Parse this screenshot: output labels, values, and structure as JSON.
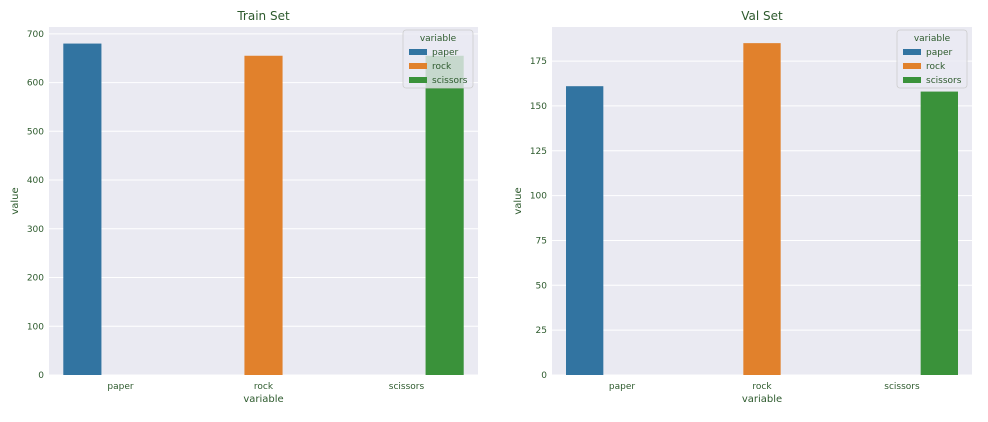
{
  "colors": {
    "paper": "#3274a1",
    "rock": "#e1812c",
    "scissors": "#3a923a",
    "plot_bg": "#eaeaf2",
    "grid": "#ffffff",
    "text": "#2d5a2d"
  },
  "chart_data": [
    {
      "type": "bar",
      "title": "Train Set",
      "xlabel": "variable",
      "ylabel": "value",
      "categories": [
        "paper",
        "rock",
        "scissors"
      ],
      "series": [
        {
          "name": "paper",
          "values": [
            680,
            0,
            0
          ]
        },
        {
          "name": "rock",
          "values": [
            0,
            655,
            0
          ]
        },
        {
          "name": "scissors",
          "values": [
            0,
            0,
            655
          ]
        }
      ],
      "ylim": [
        0,
        714
      ],
      "yticks": [
        0,
        100,
        200,
        300,
        400,
        500,
        600,
        700
      ],
      "legend": {
        "title": "variable",
        "placement": "top-right",
        "entries": [
          "paper",
          "rock",
          "scissors"
        ]
      },
      "grid": true
    },
    {
      "type": "bar",
      "title": "Val Set",
      "xlabel": "variable",
      "ylabel": "value",
      "categories": [
        "paper",
        "rock",
        "scissors"
      ],
      "series": [
        {
          "name": "paper",
          "values": [
            161,
            0,
            0
          ]
        },
        {
          "name": "rock",
          "values": [
            0,
            185,
            0
          ]
        },
        {
          "name": "scissors",
          "values": [
            0,
            0,
            158
          ]
        }
      ],
      "ylim": [
        0,
        194
      ],
      "yticks": [
        0,
        25,
        50,
        75,
        100,
        125,
        150,
        175
      ],
      "legend": {
        "title": "variable",
        "placement": "top-right",
        "entries": [
          "paper",
          "rock",
          "scissors"
        ]
      },
      "grid": true
    }
  ]
}
